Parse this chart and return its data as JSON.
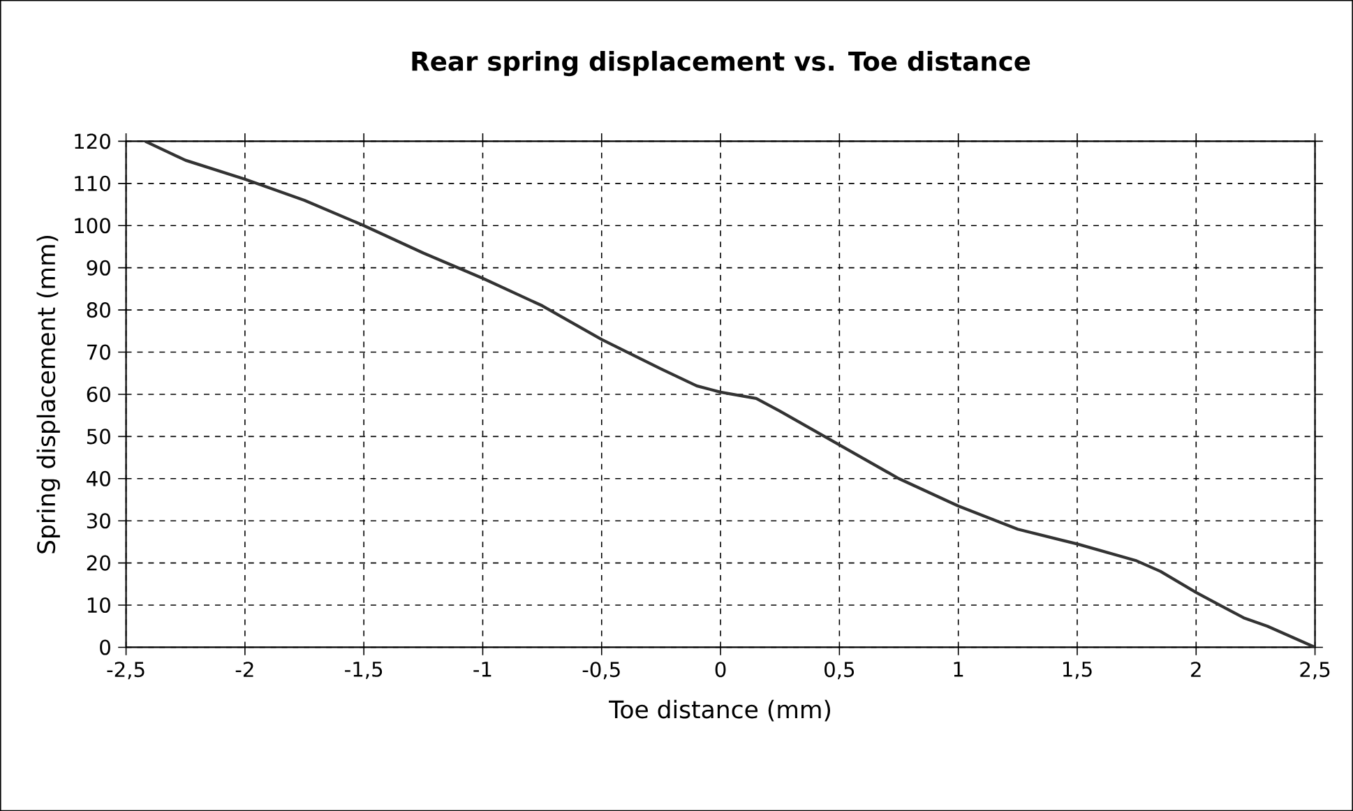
{
  "chart_data": {
    "type": "line",
    "title": "Rear spring displacement vs. Toe distance",
    "xlabel": "Toe distance (mm)",
    "ylabel": "Spring displacement (mm)",
    "x": [
      -2.42,
      -2.25,
      -2,
      -1.75,
      -1.5,
      -1.25,
      -1,
      -0.75,
      -0.5,
      -0.25,
      -0.1,
      0,
      0.15,
      0.25,
      0.5,
      0.75,
      1,
      1.25,
      1.5,
      1.75,
      1.85,
      2,
      2.1,
      2.2,
      2.3,
      2.5
    ],
    "series": [
      {
        "color": "#333333",
        "values": [
          120,
          115.5,
          111,
          106,
          100,
          93.5,
          87.5,
          81,
          73,
          66,
          62,
          60.5,
          59,
          56,
          48,
          40,
          33.5,
          28,
          24.5,
          20.5,
          18,
          13,
          10,
          7,
          5,
          0
        ]
      }
    ],
    "xlim": [
      -2.5,
      2.5
    ],
    "ylim": [
      0,
      120
    ],
    "xticks": [
      {
        "value": -2.5,
        "label": "-2,5"
      },
      -2,
      {
        "value": -1.5,
        "label": "-1,5"
      },
      -1,
      {
        "value": -0.5,
        "label": "-0,5"
      },
      0,
      {
        "value": 0.5,
        "label": "0,5"
      },
      1,
      {
        "value": 1.5,
        "label": "1,5"
      },
      2,
      {
        "value": 2.5,
        "label": "2,5"
      }
    ],
    "yticks": [
      0,
      10,
      20,
      30,
      40,
      50,
      60,
      70,
      80,
      90,
      100,
      110,
      120
    ],
    "grid": true,
    "marker": "none",
    "line_style": "solid"
  }
}
